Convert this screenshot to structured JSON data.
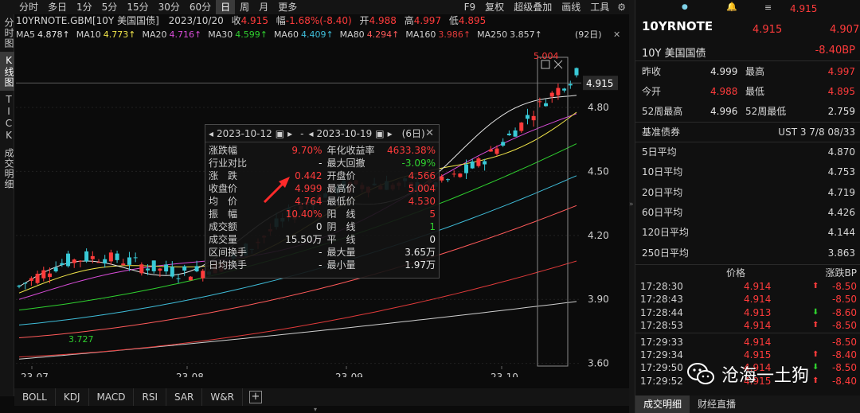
{
  "toolbar": {
    "period_tabs": [
      "分时",
      "多日",
      "1分",
      "5分",
      "15分",
      "30分",
      "60分",
      "日",
      "周",
      "月",
      "更多"
    ],
    "active_period": "日",
    "right_items": [
      "F9",
      "复权",
      "超级叠加",
      "画线",
      "工具"
    ]
  },
  "left_tabs": [
    "分时图",
    "K线图",
    "TICK",
    "成交明细"
  ],
  "info": {
    "symbol": "10YRNOTE.GBM[10Y 美国国债]",
    "date": "2023/10/20",
    "close_label": "收",
    "close": "4.915",
    "change_label": "幅",
    "change": "-1.68%(-8.40)",
    "open_label": "开",
    "open": "4.988",
    "high_label": "高",
    "high": "4.997",
    "low_label": "低",
    "low": "4.895"
  },
  "ma_line": {
    "items": [
      {
        "label": "MA5",
        "value": "4.878↑",
        "color": "#e6e6e6"
      },
      {
        "label": "MA10",
        "value": "4.773↑",
        "color": "#f2e64a"
      },
      {
        "label": "MA20",
        "value": "4.716↑",
        "color": "#d94dd9"
      },
      {
        "label": "MA30",
        "value": "4.599↑",
        "color": "#2fd12f"
      },
      {
        "label": "MA60",
        "value": "4.409↑",
        "color": "#3fbdd9"
      },
      {
        "label": "MA80",
        "value": "4.294↑",
        "color": "#ff5a5a"
      },
      {
        "label": "MA160",
        "value": "3.986↑",
        "color": "#e03a3a"
      },
      {
        "label": "MA250",
        "value": "3.857↑",
        "color": "#cfcfcf"
      }
    ],
    "count_label": "(92日)"
  },
  "chart_data": {
    "type": "candlestick",
    "y_ticks": [
      "4.80",
      "4.50",
      "4.20",
      "3.90",
      "3.60"
    ],
    "x_ticks": [
      "23-07",
      "23-08",
      "23-09",
      "23-10"
    ],
    "current_price": "4.915",
    "high_marker": "5.004",
    "low_marker": "3.727",
    "ylim": [
      3.58,
      5.05
    ]
  },
  "range_popup": {
    "start_date": "2023-10-12",
    "end_date": "2023-10-19",
    "days": "(6日)",
    "rows": [
      [
        {
          "label": "涨跌幅",
          "value": "9.70%",
          "color": "red"
        },
        {
          "label": "年化收益率",
          "value": "4633.38%",
          "color": "red"
        }
      ],
      [
        {
          "label": "行业对比",
          "value": "-",
          "color": "white"
        },
        {
          "label": "最大回撤",
          "value": "-3.09%",
          "color": "green"
        }
      ],
      [
        {
          "label": "涨　跌",
          "value": "0.442",
          "color": "red"
        },
        {
          "label": "开盘价",
          "value": "4.566",
          "color": "red"
        }
      ],
      [
        {
          "label": "收盘价",
          "value": "4.999",
          "color": "red"
        },
        {
          "label": "最高价",
          "value": "5.004",
          "color": "red"
        }
      ],
      [
        {
          "label": "均　价",
          "value": "4.764",
          "color": "red"
        },
        {
          "label": "最低价",
          "value": "4.530",
          "color": "red"
        }
      ],
      [
        {
          "label": "振　幅",
          "value": "10.40%",
          "color": "red"
        },
        {
          "label": "阳　线",
          "value": "5",
          "color": "red"
        }
      ],
      [
        {
          "label": "成交额",
          "value": "0",
          "color": "white"
        },
        {
          "label": "阴　线",
          "value": "1",
          "color": "green"
        }
      ],
      [
        {
          "label": "成交量",
          "value": "15.50万",
          "color": "white"
        },
        {
          "label": "平　线",
          "value": "0",
          "color": "white"
        }
      ],
      [
        {
          "label": "区间换手",
          "value": "-",
          "color": "white"
        },
        {
          "label": "最大量",
          "value": "3.65万",
          "color": "white"
        }
      ],
      [
        {
          "label": "日均换手",
          "value": "-",
          "color": "white"
        },
        {
          "label": "最小量",
          "value": "1.97万",
          "color": "white"
        }
      ]
    ]
  },
  "bottom_tabs": [
    "BOLL",
    "KDJ",
    "MACD",
    "RSI",
    "SAR",
    "W&R"
  ],
  "right_panel": {
    "top_price": "4.915",
    "code": "10YRNOTE",
    "price": "4.915",
    "price2": "4.907",
    "name": "10Y 美国国债",
    "change_bp": "-8.40BP",
    "stats": [
      {
        "l1": "昨收",
        "v1": "4.999",
        "c1": "white",
        "l2": "最高",
        "v2": "4.997",
        "c2": "red"
      },
      {
        "l1": "今开",
        "v1": "4.988",
        "c1": "red",
        "l2": "最低",
        "v2": "4.895",
        "c2": "red"
      },
      {
        "l1": "52周最高",
        "v1": "4.996",
        "c1": "white",
        "l2": "52周最低",
        "v2": "2.759",
        "c2": "white"
      }
    ],
    "benchmark_label": "基准债券",
    "benchmark_value": "UST 3 7/8 08/33",
    "averages": [
      {
        "label": "5日平均",
        "value": "4.870"
      },
      {
        "label": "10日平均",
        "value": "4.753"
      },
      {
        "label": "20日平均",
        "value": "4.719"
      },
      {
        "label": "60日平均",
        "value": "4.426"
      },
      {
        "label": "120日平均",
        "value": "4.144"
      },
      {
        "label": "250日平均",
        "value": "3.863"
      }
    ],
    "trade_header": {
      "price": "价格",
      "bp": "涨跌BP"
    },
    "trades": [
      {
        "time": "17:28:30",
        "price": "4.914",
        "dir": "up",
        "bp": "-8.50"
      },
      {
        "time": "17:28:43",
        "price": "4.914",
        "dir": "",
        "bp": "-8.50"
      },
      {
        "time": "17:28:44",
        "price": "4.913",
        "dir": "down",
        "bp": "-8.60"
      },
      {
        "time": "17:28:53",
        "price": "4.914",
        "dir": "up",
        "bp": "-8.50"
      },
      {
        "time": "17:29:33",
        "price": "4.914",
        "dir": "",
        "bp": "-8.50"
      },
      {
        "time": "17:29:34",
        "price": "4.915",
        "dir": "up",
        "bp": "-8.40"
      },
      {
        "time": "17:29:50",
        "price": "4.914",
        "dir": "down",
        "bp": "-8.50"
      },
      {
        "time": "17:29:52",
        "price": "4.915",
        "dir": "up",
        "bp": "-8.40"
      }
    ],
    "bottom_tabs": [
      "成交明细",
      "财经直播"
    ]
  },
  "watermark": "沧海一土狗"
}
